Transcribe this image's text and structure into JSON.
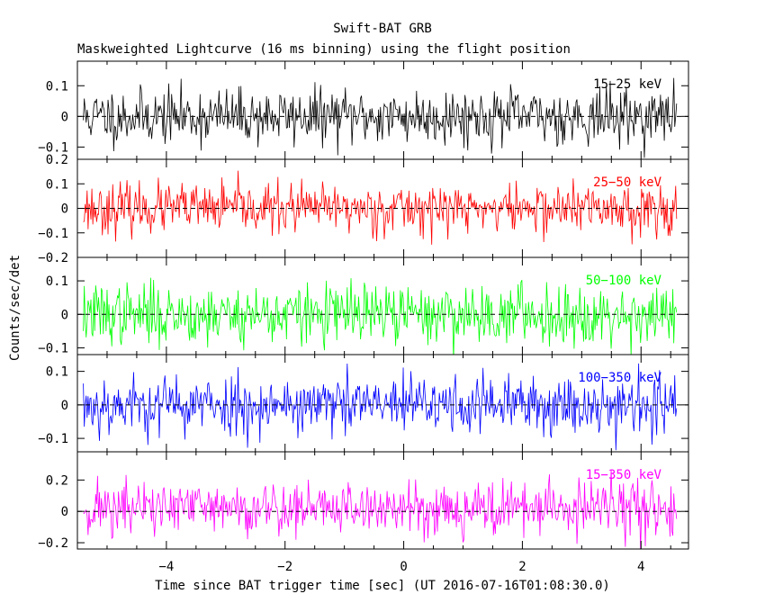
{
  "title": "Swift-BAT GRB",
  "subtitle": "Maskweighted Lightcurve (16 ms binning) using the flight position",
  "xlabel": "Time since BAT trigger time [sec] (UT 2016-07-16T01:08:30.0)",
  "ylabel": "Counts/sec/det",
  "chart_data": {
    "type": "line",
    "xlim": [
      -5.5,
      4.8
    ],
    "x_range_data": [
      -5.4,
      4.6
    ],
    "bin_width_sec": 0.016,
    "xticks": [
      -4,
      -2,
      0,
      2,
      4
    ],
    "xtick_labels": [
      "−4",
      "−2",
      "0",
      "2",
      "4"
    ],
    "panels": [
      {
        "band": "15−25 keV",
        "color": "#000000",
        "ylim": [
          -0.14,
          0.18
        ],
        "yticks": [
          0.1,
          0,
          -0.1
        ],
        "ytick_labels": [
          "0.1",
          "0",
          "−0.1"
        ],
        "mean": 0.0,
        "std": 0.045,
        "seed": 11
      },
      {
        "band": "25−50 keV",
        "color": "#ff0000",
        "ylim": [
          -0.2,
          0.2
        ],
        "yticks": [
          0.2,
          0.1,
          0,
          -0.1,
          -0.2
        ],
        "ytick_labels": [
          "0.2",
          "0.1",
          "0",
          "−0.1",
          "−0.2"
        ],
        "mean": 0.0,
        "std": 0.05,
        "seed": 23
      },
      {
        "band": "50−100 keV",
        "color": "#00ff00",
        "ylim": [
          -0.12,
          0.17
        ],
        "yticks": [
          0.1,
          0,
          -0.1
        ],
        "ytick_labels": [
          "0.1",
          "0",
          "−0.1"
        ],
        "mean": 0.0,
        "std": 0.045,
        "seed": 37
      },
      {
        "band": "100−350 keV",
        "color": "#0000ff",
        "ylim": [
          -0.14,
          0.15
        ],
        "yticks": [
          0.1,
          0,
          -0.1
        ],
        "ytick_labels": [
          "0.1",
          "0",
          "−0.1"
        ],
        "mean": 0.0,
        "std": 0.045,
        "seed": 53
      },
      {
        "band": "15−350 keV",
        "color": "#ff00ff",
        "ylim": [
          -0.24,
          0.38
        ],
        "yticks": [
          0.2,
          0,
          -0.2
        ],
        "ytick_labels": [
          "0.2",
          "0",
          "−0.2"
        ],
        "mean": 0.02,
        "std": 0.09,
        "seed": 71
      }
    ]
  }
}
